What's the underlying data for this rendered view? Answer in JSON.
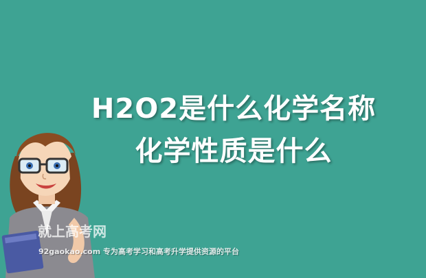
{
  "banner": {
    "background_color": "#3ea393",
    "title_line_1": "H2O2是什么化学名称",
    "title_line_2": "化学性质是什么"
  },
  "illustration": {
    "subject": "cartoon-teacher-icon"
  },
  "watermark": {
    "brand": "就上高考网",
    "site_line": "92gaokao.com 专为高考学习和高考升学提供资源的平台"
  }
}
